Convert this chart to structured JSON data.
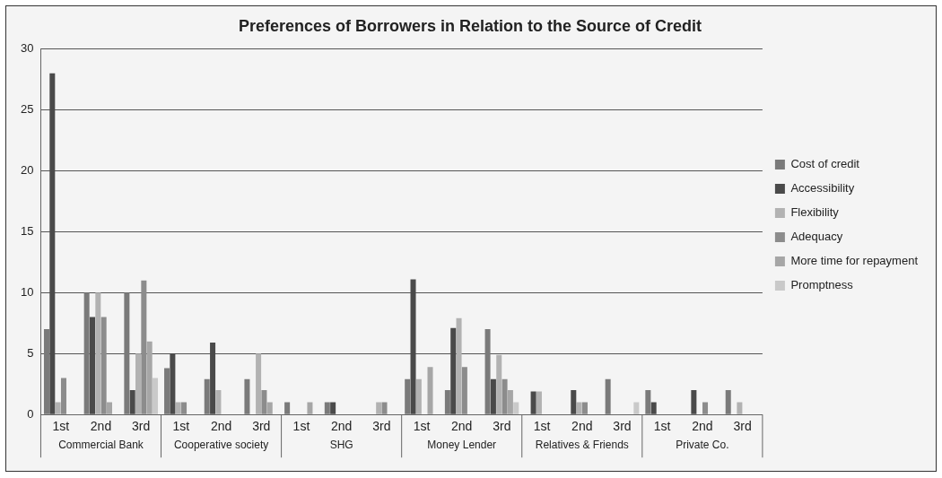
{
  "chart_data": {
    "type": "bar",
    "title": "Preferences of Borrowers in Relation to the Source of Credit",
    "categories": [
      "1st",
      "2nd",
      "3rd",
      "1st",
      "2nd",
      "3rd",
      "1st",
      "2nd",
      "3rd",
      "1st",
      "2nd",
      "3rd",
      "1st",
      "2nd",
      "3rd",
      "1st",
      "2nd",
      "3rd"
    ],
    "series": [
      {
        "name": "Cost of credit",
        "color": "#7a7a7a",
        "values": [
          7,
          10,
          10,
          3.8,
          2.9,
          2.9,
          1,
          1,
          0,
          2.9,
          2,
          7,
          0,
          0,
          2.9,
          2,
          0,
          2
        ]
      },
      {
        "name": "Accessibility",
        "color": "#4a4a4a",
        "values": [
          28,
          8,
          2,
          5,
          5.9,
          0,
          0,
          1,
          0,
          11.1,
          7.1,
          2.9,
          1.9,
          2,
          0,
          1,
          2,
          0
        ]
      },
      {
        "name": "Flexibility",
        "color": "#b2b2b2",
        "values": [
          1,
          10,
          5,
          1,
          2,
          5,
          0,
          0,
          1,
          2.9,
          7.9,
          4.9,
          1.9,
          1,
          0,
          0,
          0,
          1
        ]
      },
      {
        "name": "Adequacy",
        "color": "#8c8c8c",
        "values": [
          3,
          8,
          11,
          1,
          0,
          2,
          0,
          0,
          1,
          0,
          3.9,
          2.9,
          0,
          1,
          0,
          0,
          1,
          0
        ]
      },
      {
        "name": "More time for repayment",
        "color": "#a6a6a6",
        "values": [
          0,
          1,
          6,
          0,
          0,
          1,
          1,
          0,
          0,
          3.9,
          0,
          2,
          0,
          0,
          0,
          0,
          0,
          0
        ]
      },
      {
        "name": "Promptness",
        "color": "#c9c9c9",
        "values": [
          0,
          0,
          3,
          0,
          0,
          0,
          0,
          0,
          0,
          0,
          0,
          1,
          0,
          0,
          1,
          0,
          0,
          0
        ]
      }
    ],
    "annotations": [
      "Commercial Bank",
      "Cooperative society",
      "SHG",
      "Money Lender",
      "Relatives & Friends",
      "Private Co."
    ],
    "ylim": [
      0,
      30
    ],
    "yticks": [
      0,
      5,
      10,
      15,
      20,
      25,
      30
    ],
    "grid": "y",
    "legend": "right"
  }
}
